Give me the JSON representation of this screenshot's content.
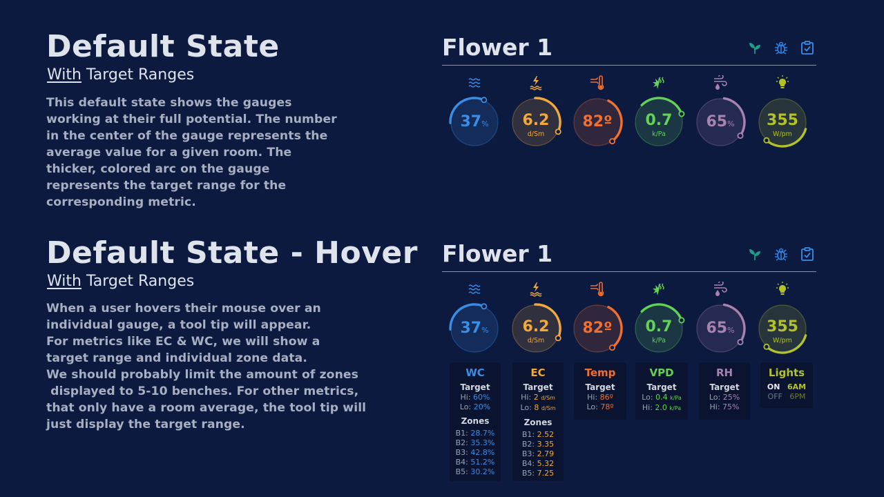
{
  "sections": [
    {
      "title": "Default State",
      "sub_underlined": "With",
      "sub_rest": " Target Ranges",
      "desc": [
        "This default state shows the gauges",
        "working at their full potential. The number",
        "in the center of the gauge represents the",
        "average value for a given room. The",
        "thicker, colored arc on the gauge",
        "represents the target range for the",
        "corresponding  metric."
      ]
    },
    {
      "title": "Default State - Hover",
      "sub_underlined": "With",
      "sub_rest": " Target Ranges",
      "desc": [
        "When a user hovers their mouse over an",
        "individual gauge, a tool tip will appear.",
        "For metrics like EC & WC, we will show a",
        "target range and individual zone data.",
        "We should probably limit the amount of zones",
        " displayed to 5-10 benches. For other metrics,",
        "that only have a room average, the tool tip will",
        "just display the target range."
      ]
    }
  ],
  "panels": [
    {
      "title": "Flower 1"
    },
    {
      "title": "Flower 1"
    }
  ],
  "header_icons": [
    "seedling-icon",
    "bug-icon",
    "clipboard-check-icon"
  ],
  "gauges": [
    {
      "key": "wc",
      "icon": "water-waves-icon",
      "value": "37",
      "unit_inline": "%",
      "unit": "",
      "color": "#3a8ee6",
      "level": 0.37
    },
    {
      "key": "ec",
      "icon": "electric-water-icon",
      "value": "6.2",
      "unit_inline": "",
      "unit": "d/Sm",
      "color": "#f2a93b",
      "level": 0.62
    },
    {
      "key": "temp",
      "icon": "thermometer-icon",
      "value": "82º",
      "unit_inline": "",
      "unit": "",
      "color": "#f0702f",
      "level": 0.7
    },
    {
      "key": "vpd",
      "icon": "leaf-heat-icon",
      "value": "0.7",
      "unit_inline": "",
      "unit": "k/Pa",
      "color": "#62d356",
      "level": 0.5
    },
    {
      "key": "rh",
      "icon": "humidity-icon",
      "value": "65",
      "unit_inline": "%",
      "unit": "",
      "color": "#a784b0",
      "level": 0.65
    },
    {
      "key": "lights",
      "icon": "lightbulb-icon",
      "value": "355",
      "unit_inline": "",
      "unit": "W/pm",
      "color": "#b3c327",
      "level": 0.92
    }
  ],
  "tooltips": {
    "wc": {
      "name": "WC",
      "target_label": "Target",
      "hi": "Hi: ",
      "hi_val": "60%",
      "lo": "Lo: ",
      "lo_val": "20%",
      "zones_label": "Zones",
      "zones": [
        {
          "k": "B1: ",
          "v": "28.7%"
        },
        {
          "k": "B2: ",
          "v": "35.3%"
        },
        {
          "k": "B3: ",
          "v": "42.8%"
        },
        {
          "k": "B4: ",
          "v": "51.2%"
        },
        {
          "k": "B5: ",
          "v": "30.2%"
        }
      ]
    },
    "ec": {
      "name": "EC",
      "target_label": "Target",
      "hi": "Hi: ",
      "hi_val": "2",
      "hi_unit": "d/Sm",
      "lo": "Lo: ",
      "lo_val": "8",
      "lo_unit": "d/Sm",
      "zones_label": "Zones",
      "zones": [
        {
          "k": "B1: ",
          "v": "2.52"
        },
        {
          "k": "B2: ",
          "v": "3.35"
        },
        {
          "k": "B3: ",
          "v": "2.79"
        },
        {
          "k": "B4: ",
          "v": "5.32"
        },
        {
          "k": "B5: ",
          "v": "7.25"
        }
      ]
    },
    "temp": {
      "name": "Temp",
      "target_label": "Target",
      "hi": "Hi: ",
      "hi_val": "86º",
      "lo": "Lo: ",
      "lo_val": "78º"
    },
    "vpd": {
      "name": "VPD",
      "target_label": "Target",
      "lo": "Lo: ",
      "lo_val": "0.4",
      "lo_unit": "k/Pa",
      "hi": "Hi: ",
      "hi_val": "2.0",
      "hi_unit": "k/Pa"
    },
    "rh": {
      "name": "RH",
      "target_label": "Target",
      "lo": "Lo: ",
      "lo_val": "25%",
      "hi": "Hi: ",
      "hi_val": "75%"
    },
    "lights": {
      "name": "Lights",
      "on": "ON",
      "on_val": "6AM",
      "off": "OFF",
      "off_val": "6PM"
    }
  },
  "colors": {
    "background": "#0c1a40",
    "tooltip": "#0a1430"
  }
}
